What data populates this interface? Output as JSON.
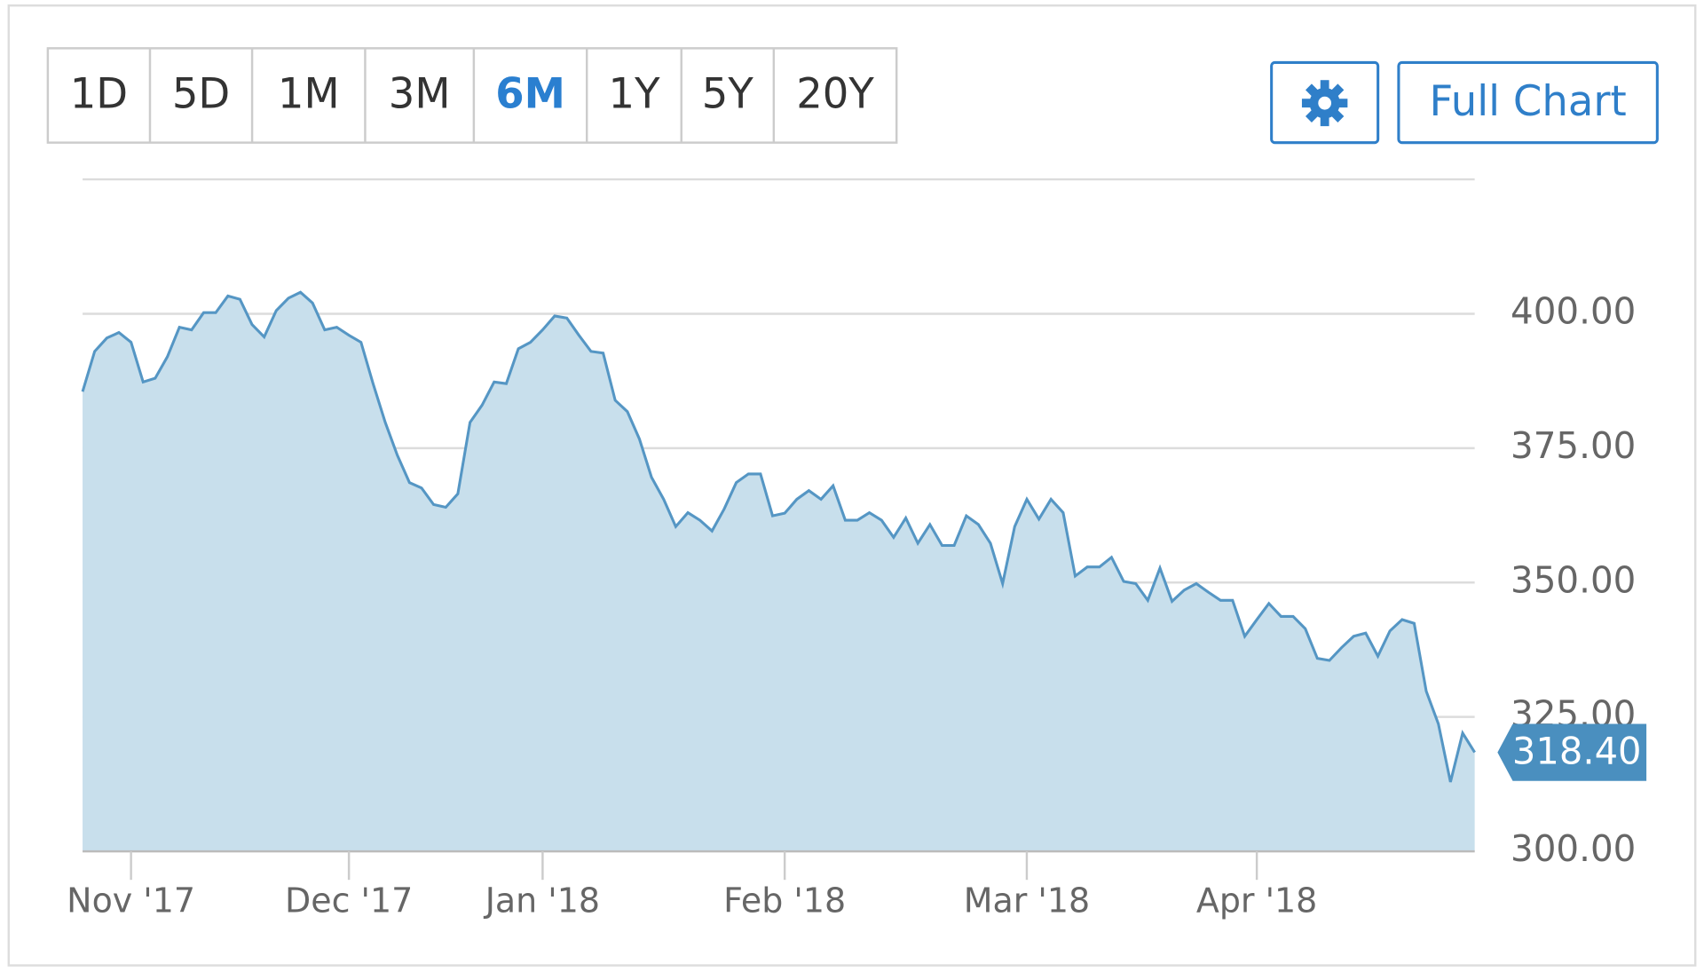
{
  "range_buttons": [
    "1D",
    "5D",
    "1M",
    "3M",
    "6M",
    "1Y",
    "5Y",
    "20Y"
  ],
  "full_chart_button": "Full Chart",
  "chart_data": {
    "type": "area",
    "categories": [
      null,
      null,
      null,
      null,
      "Nov '17",
      null,
      null,
      null,
      null,
      null,
      null,
      null,
      null,
      null,
      null,
      null,
      null,
      null,
      null,
      null,
      null,
      null,
      "Dec '17",
      null,
      null,
      null,
      null,
      null,
      null,
      null,
      null,
      null,
      null,
      null,
      null,
      null,
      null,
      null,
      "Jan '18",
      null,
      null,
      null,
      null,
      null,
      null,
      null,
      null,
      null,
      null,
      null,
      null,
      null,
      null,
      null,
      null,
      null,
      null,
      null,
      "Feb '18",
      null,
      null,
      null,
      null,
      null,
      null,
      null,
      null,
      null,
      null,
      null,
      null,
      null,
      null,
      null,
      null,
      null,
      null,
      null,
      "Mar '18",
      null,
      null,
      null,
      null,
      null,
      null,
      null,
      null,
      null,
      null,
      null,
      null,
      null,
      null,
      null,
      null,
      null,
      null,
      "Apr '18",
      null,
      null,
      null,
      null,
      null,
      null,
      null,
      null,
      null,
      null,
      null,
      null,
      null,
      null,
      null,
      null,
      null,
      null
    ],
    "series": [
      {
        "color": "#5596c4",
        "fill": "#c8dfec",
        "values": [
          385.5,
          393,
          395.5,
          396.5,
          394.7,
          387.3,
          388,
          392,
          397.5,
          397,
          400.2,
          400.2,
          403.3,
          402.7,
          398,
          395.7,
          400.6,
          402.9,
          404,
          402,
          397,
          397.5,
          396,
          394.7,
          387,
          379.8,
          373.7,
          368.6,
          367.6,
          364.5,
          364,
          366.5,
          379.8,
          383,
          387.3,
          387,
          393.5,
          394.7,
          397,
          399.6,
          399.2,
          396,
          393,
          392.7,
          383.9,
          381.8,
          376.7,
          369.6,
          365.5,
          360.4,
          363,
          361.6,
          359.6,
          363.7,
          368.6,
          370.2,
          370.2,
          362.4,
          362.9,
          365.5,
          367.1,
          365.5,
          368,
          361.6,
          361.6,
          363,
          361.6,
          358.4,
          362,
          357.3,
          360.8,
          356.9,
          356.9,
          362.4,
          360.8,
          357.3,
          349.8,
          360.4,
          365.5,
          361.8,
          365.5,
          363,
          351.2,
          352.9,
          352.9,
          354.7,
          350.2,
          349.8,
          346.7,
          352.7,
          346.5,
          348.6,
          349.8,
          348.2,
          346.7,
          346.7,
          340,
          343.1,
          346.1,
          343.7,
          343.7,
          341.4,
          335.9,
          335.5,
          337.9,
          340,
          340.6,
          336.3,
          341,
          343.1,
          342.4,
          329.8,
          323.7,
          312.9,
          322,
          318.4
        ],
        "value_labels": [
          null,
          null,
          null,
          null,
          null,
          null,
          null,
          null,
          null,
          null,
          null,
          null,
          null,
          null,
          null,
          null,
          null,
          null,
          null,
          null,
          null,
          null,
          null,
          null,
          null,
          null,
          null,
          null,
          null,
          null,
          null,
          null,
          null,
          null,
          null,
          null,
          null,
          null,
          null,
          null,
          null,
          null,
          null,
          null,
          null,
          null,
          null,
          null,
          null,
          null,
          null,
          null,
          null,
          null,
          null,
          null,
          null,
          null,
          null,
          null,
          null,
          null,
          null,
          null,
          null,
          null,
          null,
          null,
          null,
          null,
          null,
          null,
          null,
          null,
          null,
          null,
          null,
          null,
          null,
          null,
          null,
          null,
          null,
          null,
          null,
          null,
          null,
          null,
          null,
          null,
          null,
          null,
          null,
          null,
          null,
          null,
          null,
          null,
          null,
          null,
          null,
          null,
          null,
          null,
          null,
          null,
          null,
          null,
          null,
          null,
          null,
          null,
          null,
          null,
          null,
          "318.40"
        ]
      }
    ],
    "ylim": [
      300,
      425
    ],
    "yticks": [
      {
        "value": 300,
        "label": "300.00"
      },
      {
        "value": 325,
        "label": "325.00"
      },
      {
        "value": 350,
        "label": "350.00"
      },
      {
        "value": 375,
        "label": "375.00"
      },
      {
        "value": 400,
        "label": "400.00"
      },
      425
    ],
    "grid": true
  }
}
